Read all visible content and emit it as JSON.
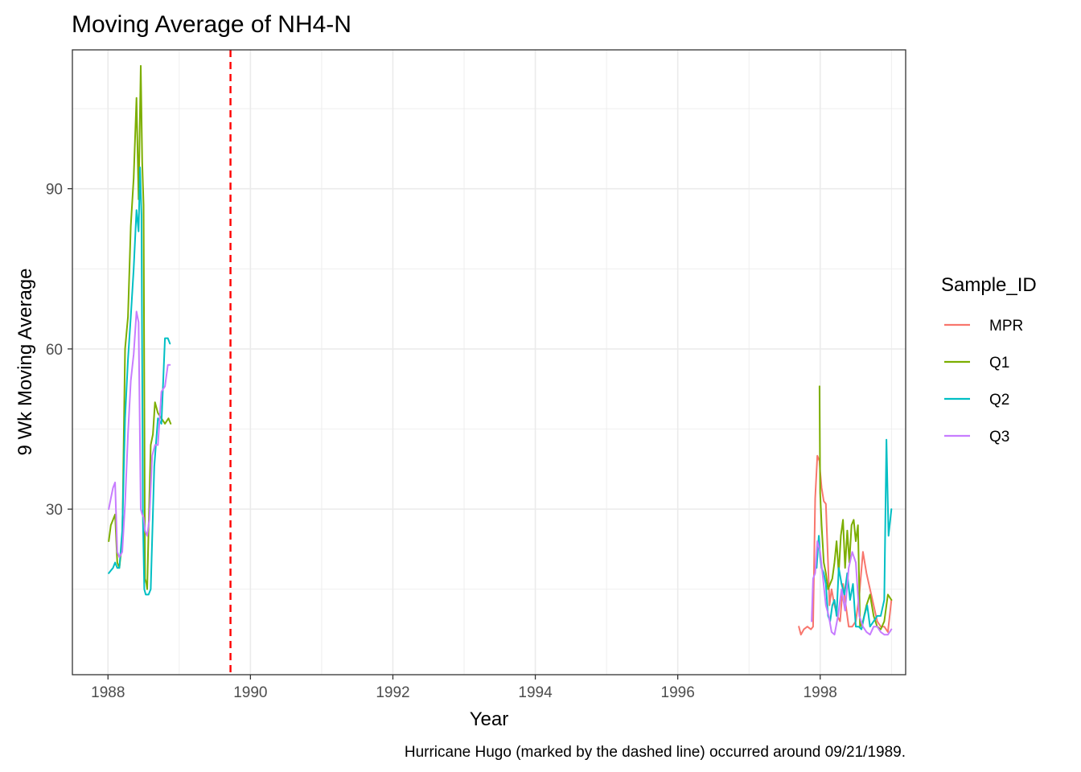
{
  "chart_data": {
    "type": "line",
    "title": "Moving Average of NH4-N",
    "xlabel": "Year",
    "ylabel": "9 Wk Moving Average",
    "caption": "Hurricane Hugo (marked by the dashed line) occurred around 09/21/1989.",
    "xlim": [
      1987.5,
      1999.2
    ],
    "ylim": [
      -1,
      116
    ],
    "x_ticks": [
      1988,
      1990,
      1992,
      1994,
      1996,
      1998
    ],
    "y_ticks": [
      30,
      60,
      90
    ],
    "grid": true,
    "legend": {
      "title": "Sample_ID",
      "placement": "right"
    },
    "reference_line": {
      "x": 1989.72,
      "style": "dashed",
      "color": "#ff0000"
    },
    "series": [
      {
        "name": "MPR",
        "color": "#F8766D",
        "x": [
          1997.7,
          1997.73,
          1997.77,
          1997.82,
          1997.87,
          1997.9,
          1997.93,
          1997.96,
          1997.99,
          1998.0,
          1998.02,
          1998.05,
          1998.08,
          1998.11,
          1998.13,
          1998.16,
          1998.2,
          1998.24,
          1998.28,
          1998.32,
          1998.36,
          1998.4,
          1998.45,
          1998.5,
          1998.55,
          1998.6,
          1998.65,
          1998.7,
          1998.75,
          1998.8,
          1998.85,
          1998.9,
          1998.95,
          1999.0
        ],
        "values": [
          8,
          6.5,
          7.5,
          8,
          7.5,
          8,
          32,
          40,
          39,
          37,
          34,
          31.5,
          31,
          20,
          12,
          15,
          12,
          10,
          9,
          16,
          12,
          8,
          8,
          9,
          14,
          22,
          18,
          15,
          12,
          9,
          8,
          8,
          7,
          13
        ]
      },
      {
        "name": "Q1",
        "color": "#7CAE00",
        "x": [
          1988.01,
          1988.04,
          1988.07,
          1988.1,
          1988.13,
          1988.16,
          1988.2,
          1988.24,
          1988.28,
          1988.32,
          1988.36,
          1988.4,
          1988.43,
          1988.46,
          1988.48,
          1988.5,
          1988.52,
          1988.54,
          1988.55,
          1988.57,
          1988.6,
          1988.63,
          1988.66,
          1988.7,
          1988.75,
          1988.8,
          1988.85,
          1988.88,
          1997.99,
          1998.0,
          1998.02,
          1998.05,
          1998.08,
          1998.11,
          1998.14,
          1998.17,
          1998.2,
          1998.23,
          1998.26,
          1998.29,
          1998.32,
          1998.35,
          1998.38,
          1998.41,
          1998.44,
          1998.47,
          1998.5,
          1998.53,
          1998.56,
          1998.6,
          1998.65,
          1998.7,
          1998.75,
          1998.8,
          1998.85,
          1998.9,
          1998.95,
          1999.0
        ],
        "values": [
          24,
          27,
          28,
          29,
          20,
          19,
          24,
          60,
          66,
          83,
          92,
          107,
          88,
          113,
          95,
          87,
          17,
          16,
          15,
          26,
          42,
          44,
          50,
          48,
          47,
          46,
          47,
          46,
          53,
          33,
          27,
          20,
          18,
          15,
          16,
          17,
          20,
          24,
          18,
          25,
          28,
          19,
          26,
          20,
          27,
          28,
          24,
          27,
          8,
          9,
          12,
          14,
          10,
          8,
          7.5,
          9,
          14,
          13
        ]
      },
      {
        "name": "Q2",
        "color": "#00BFC4",
        "x": [
          1988.01,
          1988.04,
          1988.07,
          1988.1,
          1988.13,
          1988.16,
          1988.2,
          1988.24,
          1988.28,
          1988.32,
          1988.36,
          1988.4,
          1988.43,
          1988.45,
          1988.47,
          1988.49,
          1988.51,
          1988.53,
          1988.55,
          1988.57,
          1988.6,
          1988.65,
          1988.7,
          1988.75,
          1988.8,
          1988.84,
          1988.87,
          1997.95,
          1997.98,
          1998.0,
          1998.02,
          1998.05,
          1998.08,
          1998.11,
          1998.14,
          1998.17,
          1998.2,
          1998.23,
          1998.26,
          1998.3,
          1998.34,
          1998.38,
          1998.42,
          1998.46,
          1998.5,
          1998.54,
          1998.58,
          1998.62,
          1998.66,
          1998.7,
          1998.75,
          1998.8,
          1998.85,
          1998.9,
          1998.93,
          1998.96,
          1999.0
        ],
        "values": [
          18,
          18.5,
          19,
          20,
          19,
          19,
          26,
          47,
          58,
          66,
          75,
          86,
          82,
          94,
          85,
          28,
          15,
          14,
          14,
          14,
          15,
          38,
          47,
          46,
          62,
          62,
          61,
          19,
          25,
          21,
          19,
          18,
          16,
          10,
          9,
          12,
          13,
          10,
          19,
          16,
          14,
          18,
          13,
          16,
          8,
          8,
          7.5,
          10,
          12,
          8,
          9,
          10,
          10,
          13,
          43,
          25,
          30
        ]
      },
      {
        "name": "Q3",
        "color": "#C77CFF",
        "x": [
          1988.01,
          1988.04,
          1988.07,
          1988.1,
          1988.13,
          1988.16,
          1988.2,
          1988.24,
          1988.28,
          1988.32,
          1988.36,
          1988.4,
          1988.43,
          1988.46,
          1988.48,
          1988.5,
          1988.52,
          1988.55,
          1988.58,
          1988.62,
          1988.66,
          1988.7,
          1988.75,
          1988.8,
          1988.84,
          1988.87,
          1997.88,
          1997.9,
          1997.93,
          1997.96,
          1998.0,
          1998.04,
          1998.08,
          1998.12,
          1998.16,
          1998.2,
          1998.25,
          1998.3,
          1998.35,
          1998.4,
          1998.45,
          1998.5,
          1998.55,
          1998.6,
          1998.65,
          1998.7,
          1998.75,
          1998.8,
          1998.85,
          1998.9,
          1998.95,
          1999.0
        ],
        "values": [
          30,
          32,
          34,
          35,
          22,
          21,
          22,
          31,
          44,
          54,
          59,
          67,
          65,
          30,
          29,
          28.5,
          26,
          25,
          28,
          40,
          42,
          42,
          52,
          53,
          57,
          57,
          9,
          17,
          18,
          24,
          22,
          17,
          12,
          10,
          7,
          6.5,
          10,
          15,
          11,
          19,
          22,
          20,
          10,
          8,
          7,
          6.5,
          8,
          8,
          7,
          6.5,
          6.5,
          7.5
        ]
      }
    ]
  }
}
